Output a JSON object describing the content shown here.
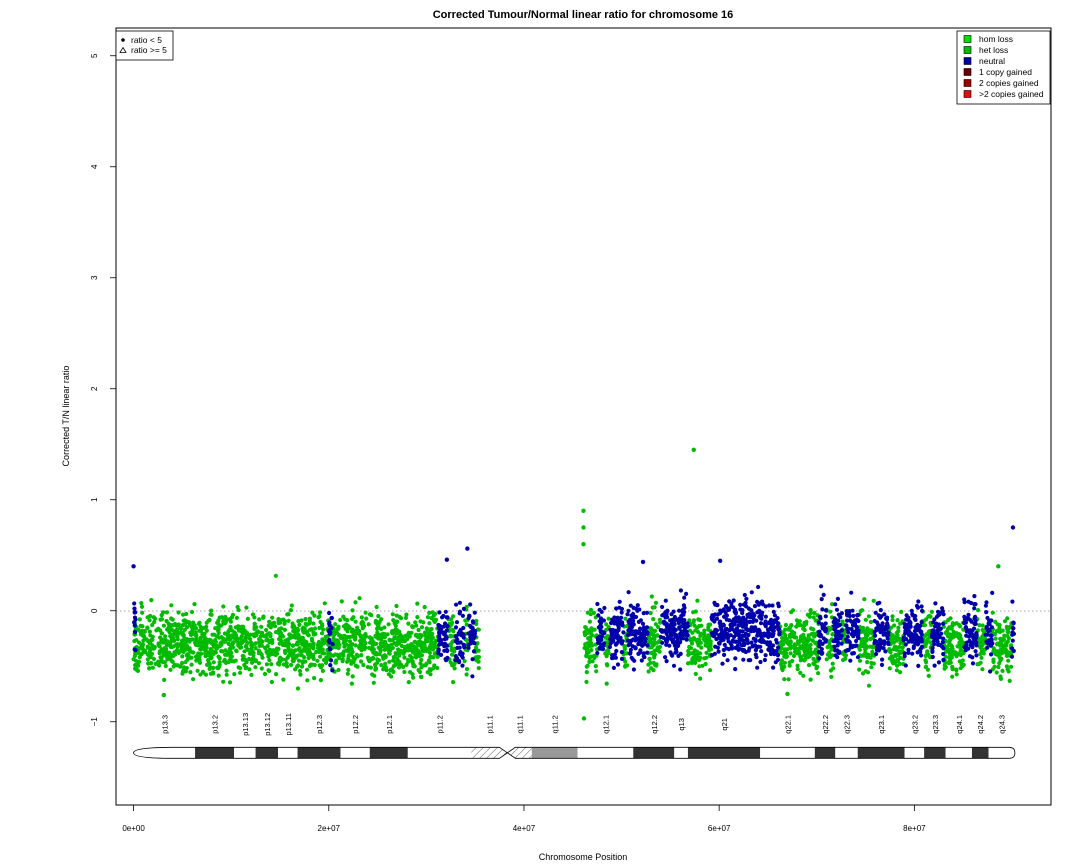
{
  "chart_data": {
    "type": "scatter",
    "title": "Corrected Tumour/Normal linear ratio for chromosome  16",
    "xlabel": "Chromosome Position",
    "ylabel": "Corrected T/N linear ratio",
    "xlim": [
      -1800000,
      94000000
    ],
    "ylim": [
      -1.75,
      5.25
    ],
    "x_ticks": [
      {
        "value": 0,
        "label": "0e+00"
      },
      {
        "value": 20000000,
        "label": "2e+07"
      },
      {
        "value": 40000000,
        "label": "4e+07"
      },
      {
        "value": 60000000,
        "label": "6e+07"
      },
      {
        "value": 80000000,
        "label": "8e+07"
      }
    ],
    "y_ticks": [
      {
        "value": -1,
        "label": "−1"
      },
      {
        "value": 0,
        "label": "0"
      },
      {
        "value": 1,
        "label": "1"
      },
      {
        "value": 2,
        "label": "2"
      },
      {
        "value": 3,
        "label": "3"
      },
      {
        "value": 4,
        "label": "4"
      },
      {
        "value": 5,
        "label": "5"
      }
    ],
    "reference_line": {
      "y": 0,
      "style": "dotted",
      "color": "#888888"
    },
    "shape_legend": {
      "placement": "top-left",
      "entries": [
        {
          "symbol": "circle",
          "label": "ratio < 5"
        },
        {
          "symbol": "triangle",
          "label": "ratio >= 5"
        }
      ]
    },
    "legend": {
      "placement": "top-right",
      "entries": [
        {
          "label": "hom loss",
          "color": "#00e000"
        },
        {
          "label": "het loss",
          "color": "#00bb00"
        },
        {
          "label": "neutral",
          "color": "#0000aa"
        },
        {
          "label": "1 copy gained",
          "color": "#6b0000"
        },
        {
          "label": "2 copies gained",
          "color": "#990000"
        },
        {
          "label": ">2 copies gained",
          "color": "#dd1111"
        }
      ]
    },
    "series": [
      {
        "state": "het loss",
        "color": "#00bb00",
        "segments": [
          {
            "x_start": 0,
            "x_end": 31200000,
            "center": -0.3,
            "spread": 0.27
          },
          {
            "x_start": 32200000,
            "x_end": 33000000,
            "center": -0.3,
            "spread": 0.27
          },
          {
            "x_start": 33900000,
            "x_end": 34300000,
            "center": -0.3,
            "spread": 0.27
          },
          {
            "x_start": 35000000,
            "x_end": 35400000,
            "center": -0.3,
            "spread": 0.27
          },
          {
            "x_start": 46200000,
            "x_end": 47500000,
            "center": -0.3,
            "spread": 0.3
          },
          {
            "x_start": 48300000,
            "x_end": 48800000,
            "center": -0.3,
            "spread": 0.27
          },
          {
            "x_start": 50200000,
            "x_end": 50600000,
            "center": -0.3,
            "spread": 0.27
          },
          {
            "x_start": 52700000,
            "x_end": 54000000,
            "center": -0.3,
            "spread": 0.27
          },
          {
            "x_start": 56800000,
            "x_end": 59200000,
            "center": -0.3,
            "spread": 0.27
          },
          {
            "x_start": 66200000,
            "x_end": 70200000,
            "center": -0.3,
            "spread": 0.27
          },
          {
            "x_start": 71000000,
            "x_end": 71700000,
            "center": -0.3,
            "spread": 0.27
          },
          {
            "x_start": 72600000,
            "x_end": 73000000,
            "center": -0.3,
            "spread": 0.27
          },
          {
            "x_start": 74300000,
            "x_end": 75900000,
            "center": -0.3,
            "spread": 0.27
          },
          {
            "x_start": 77400000,
            "x_end": 78900000,
            "center": -0.3,
            "spread": 0.27
          },
          {
            "x_start": 80800000,
            "x_end": 81800000,
            "center": -0.3,
            "spread": 0.27
          },
          {
            "x_start": 83000000,
            "x_end": 85100000,
            "center": -0.3,
            "spread": 0.27
          },
          {
            "x_start": 86400000,
            "x_end": 87300000,
            "center": -0.3,
            "spread": 0.27
          },
          {
            "x_start": 88000000,
            "x_end": 90000000,
            "center": -0.3,
            "spread": 0.27
          }
        ]
      },
      {
        "state": "neutral",
        "color": "#0000aa",
        "segments": [
          {
            "x_start": 0,
            "x_end": 200000,
            "center": -0.15,
            "spread": 0.25
          },
          {
            "x_start": 20000000,
            "x_end": 20400000,
            "center": -0.2,
            "spread": 0.27
          },
          {
            "x_start": 31200000,
            "x_end": 32200000,
            "center": -0.2,
            "spread": 0.3
          },
          {
            "x_start": 33000000,
            "x_end": 33900000,
            "center": -0.2,
            "spread": 0.3
          },
          {
            "x_start": 34300000,
            "x_end": 35000000,
            "center": -0.2,
            "spread": 0.3
          },
          {
            "x_start": 47500000,
            "x_end": 48300000,
            "center": -0.2,
            "spread": 0.25
          },
          {
            "x_start": 48800000,
            "x_end": 50200000,
            "center": -0.2,
            "spread": 0.25
          },
          {
            "x_start": 50600000,
            "x_end": 52700000,
            "center": -0.2,
            "spread": 0.25
          },
          {
            "x_start": 54000000,
            "x_end": 56800000,
            "center": -0.2,
            "spread": 0.25
          },
          {
            "x_start": 59200000,
            "x_end": 66200000,
            "center": -0.17,
            "spread": 0.27
          },
          {
            "x_start": 70200000,
            "x_end": 71000000,
            "center": -0.2,
            "spread": 0.25
          },
          {
            "x_start": 71700000,
            "x_end": 72600000,
            "center": -0.2,
            "spread": 0.25
          },
          {
            "x_start": 73000000,
            "x_end": 74300000,
            "center": -0.2,
            "spread": 0.25
          },
          {
            "x_start": 75900000,
            "x_end": 77400000,
            "center": -0.2,
            "spread": 0.25
          },
          {
            "x_start": 78900000,
            "x_end": 80800000,
            "center": -0.2,
            "spread": 0.25
          },
          {
            "x_start": 81800000,
            "x_end": 83000000,
            "center": -0.2,
            "spread": 0.25
          },
          {
            "x_start": 85100000,
            "x_end": 86400000,
            "center": -0.2,
            "spread": 0.25
          },
          {
            "x_start": 87300000,
            "x_end": 88000000,
            "center": -0.2,
            "spread": 0.25
          },
          {
            "x_start": 90000000,
            "x_end": 90200000,
            "center": -0.2,
            "spread": 0.25
          }
        ]
      }
    ],
    "outliers": [
      {
        "x": 57400000,
        "y": 1.45,
        "state": "het loss"
      },
      {
        "x": 46100000,
        "y": 0.9,
        "state": "het loss"
      },
      {
        "x": 46100000,
        "y": 0.75,
        "state": "het loss"
      },
      {
        "x": 46100000,
        "y": 0.6,
        "state": "het loss"
      },
      {
        "x": 46150000,
        "y": -0.97,
        "state": "het loss"
      },
      {
        "x": 90100000,
        "y": 0.75,
        "state": "neutral"
      },
      {
        "x": 34200000,
        "y": 0.56,
        "state": "neutral"
      },
      {
        "x": 32100000,
        "y": 0.46,
        "state": "neutral"
      },
      {
        "x": 0,
        "y": 0.4,
        "state": "neutral"
      },
      {
        "x": 52200000,
        "y": 0.44,
        "state": "neutral"
      },
      {
        "x": 60100000,
        "y": 0.45,
        "state": "neutral"
      },
      {
        "x": 88600000,
        "y": 0.4,
        "state": "het loss"
      },
      {
        "x": 3100000,
        "y": -0.76,
        "state": "het loss"
      },
      {
        "x": 67000000,
        "y": -0.75,
        "state": "het loss"
      }
    ],
    "ideogram": {
      "x_start": 0,
      "x_end": 90300000,
      "y_center": -1.28,
      "centromere": 38300000,
      "bands": [
        {
          "name": "p13.3",
          "start": 0,
          "end": 6300000,
          "stain": "gneg"
        },
        {
          "name": "p13.2",
          "start": 6300000,
          "end": 10300000,
          "stain": "gpos"
        },
        {
          "name": "p13.13",
          "start": 10300000,
          "end": 12500000,
          "stain": "gneg"
        },
        {
          "name": "p13.12",
          "start": 12500000,
          "end": 14800000,
          "stain": "gpos"
        },
        {
          "name": "p13.11",
          "start": 14800000,
          "end": 16800000,
          "stain": "gneg"
        },
        {
          "name": "p12.3",
          "start": 16800000,
          "end": 21200000,
          "stain": "gpos"
        },
        {
          "name": "p12.2",
          "start": 21200000,
          "end": 24200000,
          "stain": "gneg"
        },
        {
          "name": "p12.1",
          "start": 24200000,
          "end": 28100000,
          "stain": "gpos"
        },
        {
          "name": "p11.2",
          "start": 28100000,
          "end": 34600000,
          "stain": "gneg"
        },
        {
          "name": "p11.1",
          "start": 34600000,
          "end": 38300000,
          "stain": "hatch"
        },
        {
          "name": "q11.1",
          "start": 38300000,
          "end": 40800000,
          "stain": "hatch"
        },
        {
          "name": "q11.2",
          "start": 40800000,
          "end": 45500000,
          "stain": "gvar"
        },
        {
          "name": "q12.1",
          "start": 45500000,
          "end": 51200000,
          "stain": "gneg"
        },
        {
          "name": "q12.2",
          "start": 51200000,
          "end": 55400000,
          "stain": "gpos"
        },
        {
          "name": "q13",
          "start": 55400000,
          "end": 56800000,
          "stain": "gneg"
        },
        {
          "name": "q21",
          "start": 56800000,
          "end": 64200000,
          "stain": "gpos"
        },
        {
          "name": "q22.1",
          "start": 64200000,
          "end": 69800000,
          "stain": "gneg"
        },
        {
          "name": "q22.2",
          "start": 69800000,
          "end": 71900000,
          "stain": "gpos"
        },
        {
          "name": "q22.3",
          "start": 71900000,
          "end": 74200000,
          "stain": "gneg"
        },
        {
          "name": "q23.1",
          "start": 74200000,
          "end": 79000000,
          "stain": "gpos"
        },
        {
          "name": "q23.2",
          "start": 79000000,
          "end": 81000000,
          "stain": "gneg"
        },
        {
          "name": "q23.3",
          "start": 81000000,
          "end": 83200000,
          "stain": "gpos"
        },
        {
          "name": "q24.1",
          "start": 83200000,
          "end": 85900000,
          "stain": "gneg"
        },
        {
          "name": "q24.2",
          "start": 85900000,
          "end": 87600000,
          "stain": "gpos"
        },
        {
          "name": "q24.3",
          "start": 87600000,
          "end": 90300000,
          "stain": "gneg"
        }
      ],
      "stain_colors": {
        "gneg": "#ffffff",
        "gpos": "#333333",
        "gvar": "#999999",
        "hatch": "#ffffff"
      }
    }
  }
}
